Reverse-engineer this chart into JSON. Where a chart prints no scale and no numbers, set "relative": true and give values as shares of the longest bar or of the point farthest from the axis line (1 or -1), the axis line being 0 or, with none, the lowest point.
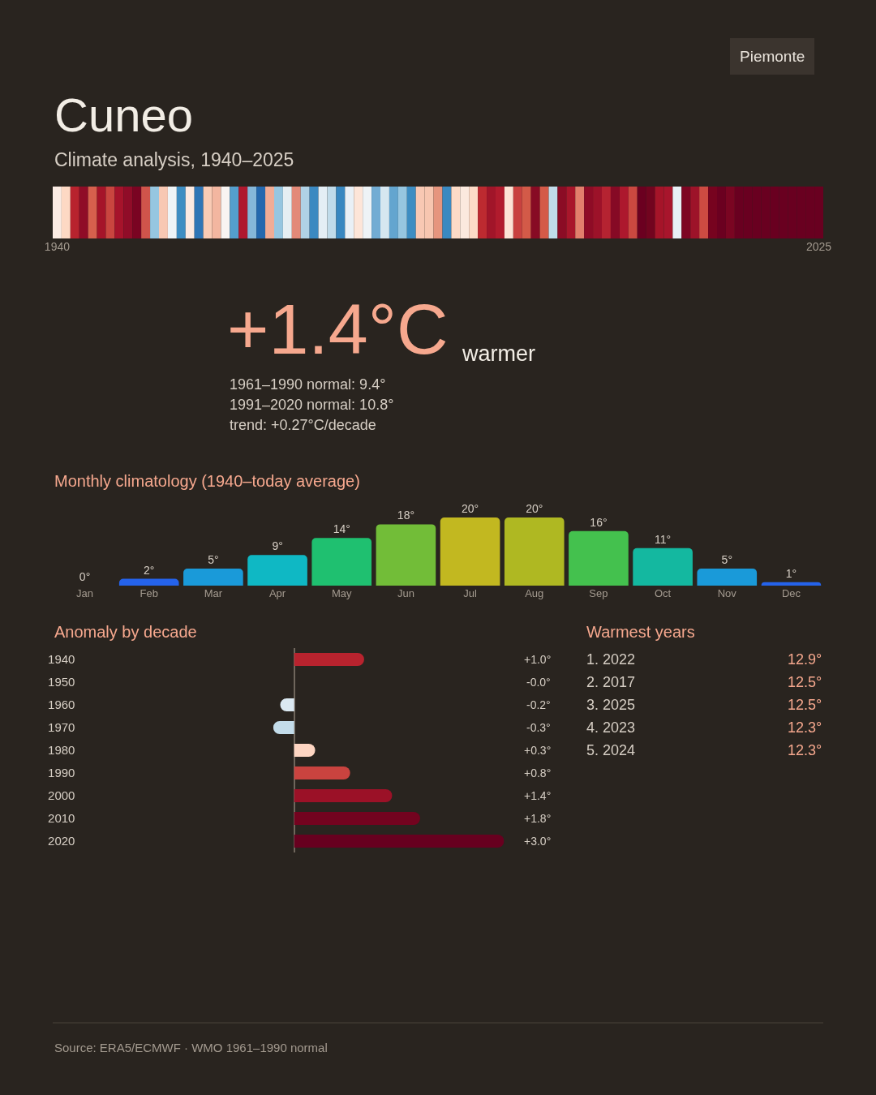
{
  "chart_data": [
    {
      "type": "bar",
      "title": "Cuneo",
      "subtitle": "Climate analysis, 1940–2025",
      "annotations": [
        "Piemonte"
      ],
      "relative": true,
      "categories": [
        "1940",
        null,
        null,
        null,
        null,
        null,
        null,
        null,
        null,
        null,
        null,
        null,
        null,
        null,
        null,
        null,
        null,
        null,
        null,
        null,
        null,
        null,
        null,
        null,
        null,
        null,
        null,
        null,
        null,
        null,
        null,
        null,
        null,
        null,
        null,
        null,
        null,
        null,
        null,
        null,
        null,
        null,
        null,
        null,
        null,
        null,
        null,
        null,
        null,
        null,
        null,
        null,
        null,
        null,
        null,
        null,
        null,
        null,
        null,
        null,
        null,
        null,
        null,
        null,
        null,
        null,
        null,
        null,
        null,
        null,
        null,
        null,
        null,
        null,
        null,
        null,
        null,
        null,
        null,
        null,
        null,
        null,
        null,
        null,
        null,
        null,
        "2025"
      ],
      "values": [
        1,
        1,
        1,
        1,
        1,
        1,
        1,
        1,
        1,
        1,
        1,
        1,
        1,
        1,
        1,
        1,
        1,
        1,
        1,
        1,
        1,
        1,
        1,
        1,
        1,
        1,
        1,
        1,
        1,
        1,
        1,
        1,
        1,
        1,
        1,
        1,
        1,
        1,
        1,
        1,
        1,
        1,
        1,
        1,
        1,
        1,
        1,
        1,
        1,
        1,
        1,
        1,
        1,
        1,
        1,
        1,
        1,
        1,
        1,
        1,
        1,
        1,
        1,
        1,
        1,
        1,
        1,
        1,
        1,
        1,
        1,
        1,
        1,
        1,
        1,
        1,
        1,
        1,
        1,
        1,
        1,
        1,
        1,
        1,
        1,
        1,
        1
      ],
      "colors": [
        "#fbece4",
        "#fdd9c4",
        "#b8232e",
        "#8f0c27",
        "#d6604d",
        "#a51429",
        "#c9453f",
        "#a6132b",
        "#900c28",
        "#7a0422",
        "#d0544b",
        "#96c6e0",
        "#f8c8b3",
        "#eef4f7",
        "#3d8dc2",
        "#fbe9e1",
        "#2e75b6",
        "#f9cbb5",
        "#f3b6a0",
        "#f8f4f2",
        "#549fcd",
        "#af182e",
        "#85b7d9",
        "#2468ae",
        "#f0ac95",
        "#96c6e0",
        "#e6eff3",
        "#e38978",
        "#b0d2e5",
        "#3b89c1",
        "#e4eef5",
        "#c0dbea",
        "#3887c0",
        "#e9f0f6",
        "#fde5d8",
        "#eef3f6",
        "#72acd3",
        "#d6e7f0",
        "#63a5cf",
        "#96c6e0",
        "#3d8dc2",
        "#f8c8b3",
        "#f7c6b0",
        "#e6957e",
        "#3a89c1",
        "#fddbc7",
        "#fbe9de",
        "#fddbc7",
        "#bd2a30",
        "#a11529",
        "#b11b2d",
        "#fde3d5",
        "#c8413f",
        "#d35a48",
        "#870b24",
        "#d45a48",
        "#c0dcea",
        "#8b0c25",
        "#a8162b",
        "#e27f6c",
        "#8e0c26",
        "#9c1229",
        "#b52331",
        "#860a25",
        "#ad182d",
        "#cb4840",
        "#6b0020",
        "#72041f",
        "#a51429",
        "#a8152c",
        "#e8f0f6",
        "#7d0623",
        "#9d1329",
        "#cd4b42",
        "#77031f",
        "#6b0020",
        "#7a0522",
        "#690020",
        "#690020",
        "#690020",
        "#690020",
        "#690020",
        "#690020",
        "#690020",
        "#690020",
        "#690020",
        "#690020"
      ]
    },
    {
      "type": "other",
      "title": "+1.4°C",
      "subtitle": "warmer",
      "annotations": [
        "1961–1990 normal: 9.4°",
        "1991–2020 normal: 10.8°",
        "trend: +0.27°C/decade"
      ]
    },
    {
      "type": "bar",
      "title": "Monthly climatology (1940–today average)",
      "tick_labels": "x",
      "categories": [
        "Jan",
        "Feb",
        "Mar",
        "Apr",
        "May",
        "Jun",
        "Jul",
        "Aug",
        "Sep",
        "Oct",
        "Nov",
        "Dec"
      ],
      "values": [
        0,
        2,
        5,
        9,
        14,
        18,
        20,
        20,
        16,
        11,
        5,
        1
      ],
      "value_labels": [
        "0°",
        "2°",
        "5°",
        "9°",
        "14°",
        "18°",
        "20°",
        "20°",
        "16°",
        "11°",
        "5°",
        "1°"
      ],
      "colors": [
        "#2563eb",
        "#2563eb",
        "#1a9ad9",
        "#0fb8c4",
        "#1fc070",
        "#72bd38",
        "#c2b820",
        "#afb822",
        "#44c14e",
        "#14b8a0",
        "#1a9ad9",
        "#2563eb"
      ]
    },
    {
      "type": "bar",
      "orientation": "horizontal",
      "title": "Anomaly by decade",
      "tick_labels": "y",
      "categories": [
        "1940",
        "1950",
        "1960",
        "1970",
        "1980",
        "1990",
        "2000",
        "2010",
        "2020"
      ],
      "values": [
        1.0,
        -0.0,
        -0.2,
        -0.3,
        0.3,
        0.8,
        1.4,
        1.8,
        3.0
      ],
      "value_labels": [
        "+1.0°",
        "-0.0°",
        "-0.2°",
        "-0.3°",
        "+0.3°",
        "+0.8°",
        "+1.4°",
        "+1.8°",
        "+3.0°"
      ],
      "colors": [
        "#b8232e",
        "#eef2f5",
        "#dbe9f2",
        "#c3dcea",
        "#fdd5c2",
        "#c9433f",
        "#9b1127",
        "#73031f",
        "#67001f"
      ]
    },
    {
      "type": "other",
      "title": "Warmest years",
      "categories": [
        "1. 2022",
        "2. 2017",
        "3. 2025",
        "4. 2023",
        "5. 2024"
      ],
      "value_labels": [
        "12.9°",
        "12.5°",
        "12.5°",
        "12.3°",
        "12.3°"
      ],
      "annotations": [
        "Source: ERA5/ECMWF · WMO 1961–1990 normal"
      ]
    }
  ]
}
